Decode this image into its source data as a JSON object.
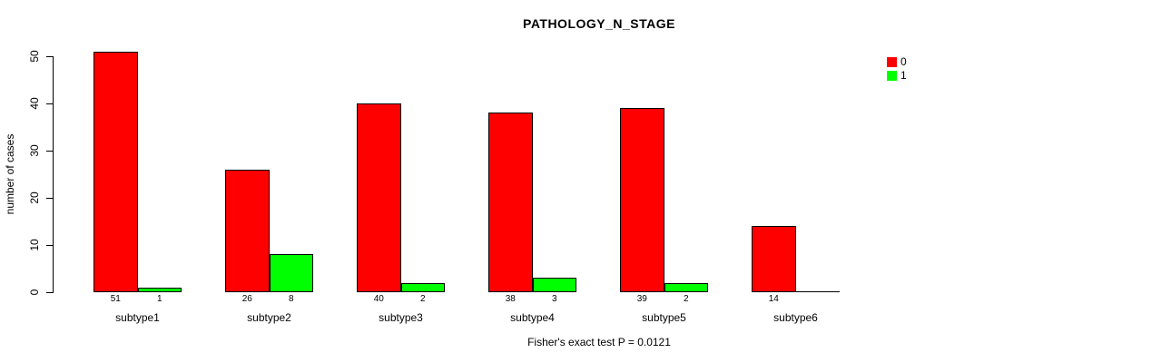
{
  "chart_data": {
    "type": "bar",
    "title": "PATHOLOGY_N_STAGE",
    "ylabel": "number of cases",
    "xlabel": "",
    "categories": [
      "subtype1",
      "subtype2",
      "subtype3",
      "subtype4",
      "subtype5",
      "subtype6"
    ],
    "series": [
      {
        "name": "0",
        "color": "#FF0000",
        "values": [
          51,
          26,
          40,
          38,
          39,
          14
        ]
      },
      {
        "name": "1",
        "color": "#00FF00",
        "values": [
          1,
          8,
          2,
          3,
          2,
          0
        ]
      }
    ],
    "bar_value_labels": [
      [
        "51",
        "26",
        "40",
        "38",
        "39",
        "14"
      ],
      [
        "1",
        "8",
        "2",
        "3",
        "2",
        ""
      ]
    ],
    "yticks": [
      0,
      10,
      20,
      30,
      40,
      50
    ],
    "ylim": [
      0,
      50
    ],
    "grid": false,
    "legend_position": "top-right",
    "annotation": "Fisher's exact test P = 0.0121",
    "colors": {
      "series0": "#FF0000",
      "series1": "#00FF00",
      "axis": "#000000",
      "background": "#FFFFFF"
    }
  }
}
